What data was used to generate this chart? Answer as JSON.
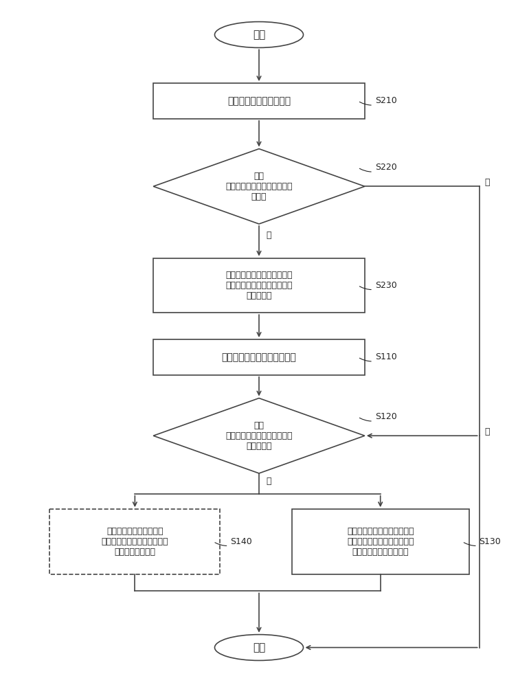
{
  "bg_color": "#ffffff",
  "line_color": "#444444",
  "text_color": "#222222",
  "start_text": "开始",
  "end_text": "结束",
  "S210_text": "获取资产的运行参数指标",
  "S220_text": "检测\n运行参数指标是否满足指标阈\n值规则",
  "S230_text": "在第一资产的运行参数指标满\n足指标阈值条件的情况下，生\n成告警事件",
  "S110_text": "获取第一资产的运行参数指标",
  "S120_text": "检测\n运行参数指标是否满足告警事\n件处理规则",
  "S130_text": "在运行参数指标满足第一告警\n事件处理规则条件的情况下，\n对告警事件进行自动修复",
  "S140_text": "在运行参数指标满足第二\n告警事件处理规则条件的情况\n下，输出告警事件",
  "yes_text": "是",
  "no_text": "否",
  "fontsize_main": 10,
  "fontsize_label": 9,
  "fontsize_terminal": 11
}
